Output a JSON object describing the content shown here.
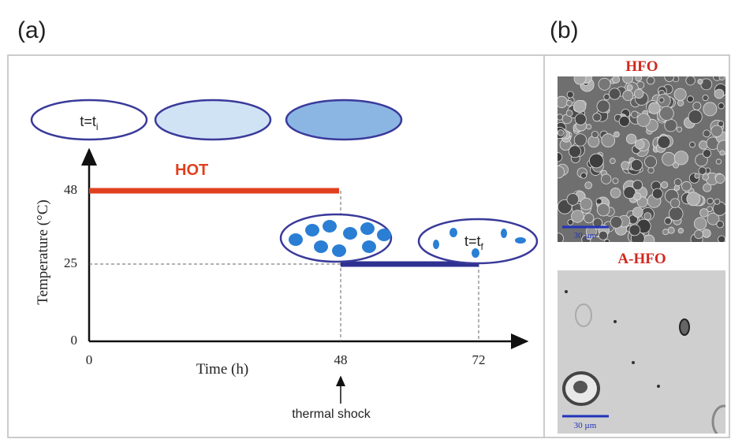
{
  "panel_a": {
    "label": "(a)",
    "y_axis_label": "Temperature (°C)",
    "x_axis_label": "Time (h)",
    "y_tick_labels": [
      "0",
      "25",
      "48"
    ],
    "x_tick_labels": [
      "0",
      "48",
      "72"
    ],
    "hot_label": "HOT",
    "start_label": {
      "text": "t=t",
      "sub": "i"
    },
    "end_label": {
      "text": "t=t",
      "sub": "f"
    },
    "annotation": "thermal shock"
  },
  "panel_b": {
    "label": "(b)",
    "top": {
      "title": "HFO",
      "scale_bar": "30 µm"
    },
    "bottom": {
      "title": "A-HFO",
      "scale_bar": "30 µm"
    }
  }
}
